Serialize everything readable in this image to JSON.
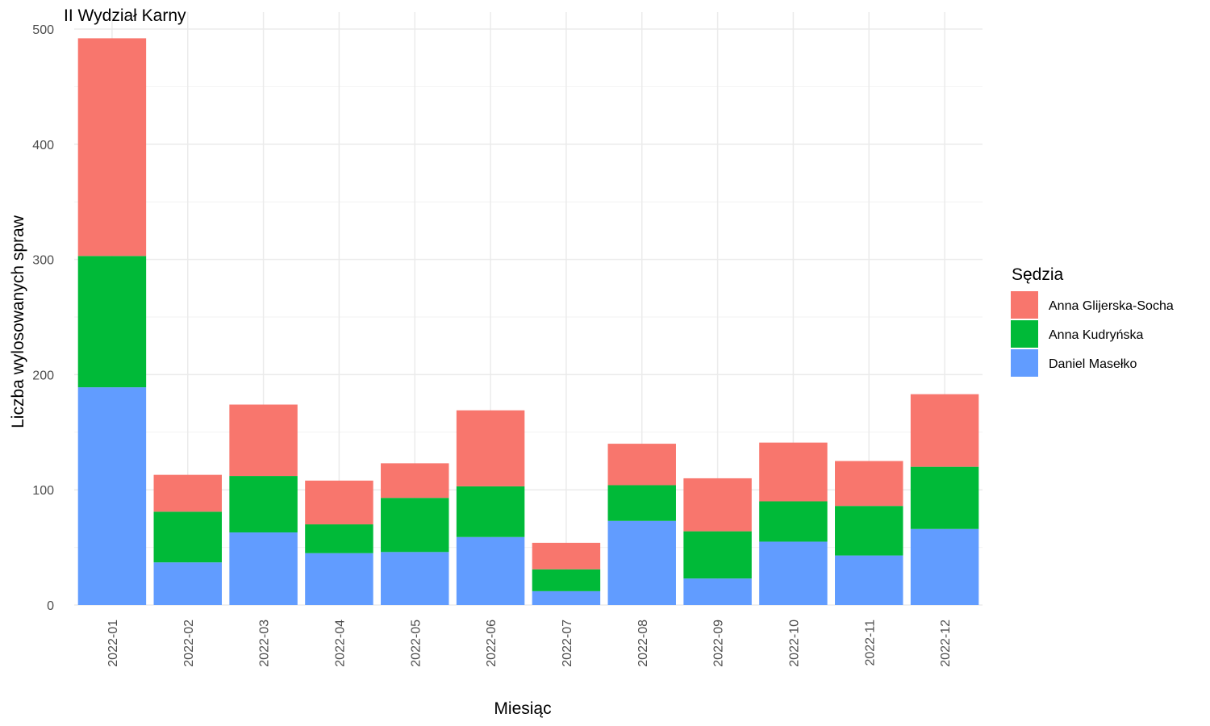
{
  "chart_data": {
    "type": "bar",
    "stacked": true,
    "title": "II Wydział Karny",
    "xlabel": "Miesiąc",
    "ylabel": "Liczba wylosowanych spraw",
    "ylim": [
      0,
      500
    ],
    "yticks": [
      0,
      100,
      200,
      300,
      400,
      500
    ],
    "grid": true,
    "legend_position": "right",
    "legend_title": "Sędzia",
    "categories": [
      "2022-01",
      "2022-02",
      "2022-03",
      "2022-04",
      "2022-05",
      "2022-06",
      "2022-07",
      "2022-08",
      "2022-09",
      "2022-10",
      "2022-11",
      "2022-12"
    ],
    "series": [
      {
        "name": "Daniel Masełko",
        "color": "#619CFF",
        "values": [
          189,
          37,
          63,
          45,
          46,
          59,
          12,
          73,
          23,
          55,
          43,
          66
        ]
      },
      {
        "name": "Anna Kudryńska",
        "color": "#00BA38",
        "values": [
          114,
          44,
          49,
          25,
          47,
          44,
          19,
          31,
          41,
          35,
          43,
          54
        ]
      },
      {
        "name": "Anna Glijerska-Socha",
        "color": "#F8766D",
        "values": [
          189,
          32,
          62,
          38,
          30,
          66,
          23,
          36,
          46,
          51,
          39,
          63
        ]
      }
    ],
    "legend_order": [
      "Anna Glijerska-Socha",
      "Anna Kudryńska",
      "Daniel Masełko"
    ]
  }
}
